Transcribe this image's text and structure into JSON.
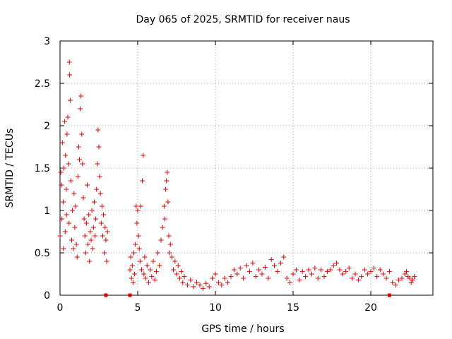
{
  "chart_data": {
    "type": "scatter",
    "title": "Day 065 of 2025, SRMTID for receiver naus",
    "xlabel": "GPS time / hours",
    "ylabel": "SRMTID / TECUs",
    "xlim": [
      0,
      24
    ],
    "ylim": [
      0,
      3
    ],
    "grid": true,
    "x_ticks": [
      0,
      5,
      10,
      15,
      20
    ],
    "x_tick_labels": [
      "0",
      "5",
      "10",
      "15",
      "20"
    ],
    "y_ticks": [
      0,
      0.5,
      1,
      1.5,
      2,
      2.5,
      3
    ],
    "y_tick_labels": [
      "0",
      "0.5",
      "1",
      "1.5",
      "2",
      "2.5",
      "3"
    ],
    "marker": "+",
    "color": "#e00000",
    "series": [
      {
        "name": "SRMTID",
        "points": [
          [
            0.0,
            0.7
          ],
          [
            0.05,
            1.45
          ],
          [
            0.1,
            1.3
          ],
          [
            0.12,
            0.9
          ],
          [
            0.15,
            1.8
          ],
          [
            0.2,
            1.1
          ],
          [
            0.22,
            0.55
          ],
          [
            0.25,
            1.5
          ],
          [
            0.3,
            2.05
          ],
          [
            0.33,
            0.75
          ],
          [
            0.35,
            1.65
          ],
          [
            0.4,
            1.25
          ],
          [
            0.42,
            0.95
          ],
          [
            0.45,
            1.9
          ],
          [
            0.5,
            2.1
          ],
          [
            0.55,
            1.55
          ],
          [
            0.58,
            0.85
          ],
          [
            0.6,
            2.75
          ],
          [
            0.62,
            2.6
          ],
          [
            0.65,
            2.3
          ],
          [
            0.7,
            1.35
          ],
          [
            0.75,
            0.65
          ],
          [
            0.8,
            1.0
          ],
          [
            0.85,
            0.55
          ],
          [
            0.9,
            1.2
          ],
          [
            0.95,
            0.8
          ],
          [
            1.0,
            1.05
          ],
          [
            1.05,
            0.6
          ],
          [
            1.1,
            0.45
          ],
          [
            1.15,
            1.4
          ],
          [
            1.2,
            1.75
          ],
          [
            1.25,
            1.6
          ],
          [
            1.3,
            2.2
          ],
          [
            1.35,
            2.35
          ],
          [
            1.4,
            1.9
          ],
          [
            1.45,
            1.55
          ],
          [
            1.5,
            1.15
          ],
          [
            1.55,
            0.9
          ],
          [
            1.6,
            0.7
          ],
          [
            1.65,
            0.5
          ],
          [
            1.7,
            0.85
          ],
          [
            1.75,
            1.3
          ],
          [
            1.8,
            0.6
          ],
          [
            1.85,
            0.95
          ],
          [
            1.9,
            0.4
          ],
          [
            1.95,
            0.75
          ],
          [
            2.0,
            0.65
          ],
          [
            2.05,
            1.0
          ],
          [
            2.1,
            0.55
          ],
          [
            2.15,
            0.8
          ],
          [
            2.2,
            1.1
          ],
          [
            2.25,
            0.7
          ],
          [
            2.3,
            0.9
          ],
          [
            2.35,
            1.25
          ],
          [
            2.4,
            1.55
          ],
          [
            2.45,
            1.95
          ],
          [
            2.5,
            1.75
          ],
          [
            2.55,
            1.4
          ],
          [
            2.6,
            1.2
          ],
          [
            2.65,
            0.85
          ],
          [
            2.7,
            1.05
          ],
          [
            2.75,
            0.7
          ],
          [
            2.8,
            0.95
          ],
          [
            2.85,
            0.5
          ],
          [
            2.9,
            0.8
          ],
          [
            2.95,
            0.65
          ],
          [
            3.0,
            0.4
          ],
          [
            3.05,
            0.75
          ],
          [
            4.5,
            0.3
          ],
          [
            4.55,
            0.45
          ],
          [
            4.6,
            0.2
          ],
          [
            4.65,
            0.35
          ],
          [
            4.7,
            0.15
          ],
          [
            4.75,
            0.5
          ],
          [
            4.8,
            0.25
          ],
          [
            4.85,
            0.6
          ],
          [
            4.9,
            1.05
          ],
          [
            4.95,
            0.85
          ],
          [
            5.0,
            1.0
          ],
          [
            5.05,
            0.7
          ],
          [
            5.1,
            0.55
          ],
          [
            5.15,
            0.4
          ],
          [
            5.2,
            1.05
          ],
          [
            5.25,
            0.3
          ],
          [
            5.3,
            1.35
          ],
          [
            5.35,
            1.65
          ],
          [
            5.4,
            0.25
          ],
          [
            5.45,
            0.45
          ],
          [
            5.5,
            0.2
          ],
          [
            5.6,
            0.35
          ],
          [
            5.7,
            0.15
          ],
          [
            5.8,
            0.3
          ],
          [
            5.9,
            0.22
          ],
          [
            6.0,
            0.4
          ],
          [
            6.1,
            0.18
          ],
          [
            6.2,
            0.28
          ],
          [
            6.3,
            0.5
          ],
          [
            6.4,
            0.35
          ],
          [
            6.5,
            0.65
          ],
          [
            6.6,
            0.8
          ],
          [
            6.7,
            1.05
          ],
          [
            6.75,
            0.9
          ],
          [
            6.8,
            1.25
          ],
          [
            6.85,
            1.35
          ],
          [
            6.9,
            1.45
          ],
          [
            6.95,
            1.1
          ],
          [
            7.0,
            0.7
          ],
          [
            7.05,
            0.5
          ],
          [
            7.1,
            0.6
          ],
          [
            7.2,
            0.45
          ],
          [
            7.3,
            0.3
          ],
          [
            7.4,
            0.4
          ],
          [
            7.5,
            0.25
          ],
          [
            7.6,
            0.35
          ],
          [
            7.7,
            0.2
          ],
          [
            7.8,
            0.28
          ],
          [
            7.9,
            0.15
          ],
          [
            8.0,
            0.22
          ],
          [
            8.2,
            0.12
          ],
          [
            8.4,
            0.18
          ],
          [
            8.6,
            0.1
          ],
          [
            8.8,
            0.15
          ],
          [
            9.0,
            0.12
          ],
          [
            9.2,
            0.08
          ],
          [
            9.4,
            0.14
          ],
          [
            9.6,
            0.1
          ],
          [
            9.8,
            0.2
          ],
          [
            10.0,
            0.25
          ],
          [
            10.2,
            0.15
          ],
          [
            10.4,
            0.12
          ],
          [
            10.6,
            0.2
          ],
          [
            10.8,
            0.15
          ],
          [
            11.0,
            0.22
          ],
          [
            11.2,
            0.3
          ],
          [
            11.4,
            0.25
          ],
          [
            11.6,
            0.32
          ],
          [
            11.8,
            0.2
          ],
          [
            12.0,
            0.35
          ],
          [
            12.2,
            0.28
          ],
          [
            12.4,
            0.38
          ],
          [
            12.6,
            0.22
          ],
          [
            12.8,
            0.3
          ],
          [
            13.0,
            0.25
          ],
          [
            13.2,
            0.33
          ],
          [
            13.4,
            0.2
          ],
          [
            13.6,
            0.42
          ],
          [
            13.8,
            0.35
          ],
          [
            14.0,
            0.28
          ],
          [
            14.2,
            0.38
          ],
          [
            14.4,
            0.45
          ],
          [
            14.6,
            0.2
          ],
          [
            14.8,
            0.15
          ],
          [
            15.0,
            0.25
          ],
          [
            15.2,
            0.3
          ],
          [
            15.4,
            0.18
          ],
          [
            15.6,
            0.28
          ],
          [
            15.8,
            0.22
          ],
          [
            16.0,
            0.3
          ],
          [
            16.2,
            0.25
          ],
          [
            16.4,
            0.32
          ],
          [
            16.6,
            0.2
          ],
          [
            16.8,
            0.3
          ],
          [
            17.0,
            0.22
          ],
          [
            17.2,
            0.28
          ],
          [
            17.4,
            0.3
          ],
          [
            17.6,
            0.35
          ],
          [
            17.8,
            0.38
          ],
          [
            18.0,
            0.3
          ],
          [
            18.2,
            0.25
          ],
          [
            18.4,
            0.28
          ],
          [
            18.6,
            0.32
          ],
          [
            18.8,
            0.2
          ],
          [
            19.0,
            0.25
          ],
          [
            19.2,
            0.18
          ],
          [
            19.4,
            0.22
          ],
          [
            19.6,
            0.3
          ],
          [
            19.8,
            0.25
          ],
          [
            20.0,
            0.28
          ],
          [
            20.2,
            0.32
          ],
          [
            20.4,
            0.22
          ],
          [
            20.6,
            0.3
          ],
          [
            20.8,
            0.25
          ],
          [
            21.0,
            0.2
          ],
          [
            21.2,
            0.28
          ],
          [
            21.4,
            0.15
          ],
          [
            21.6,
            0.12
          ],
          [
            21.8,
            0.18
          ],
          [
            22.0,
            0.2
          ],
          [
            22.2,
            0.25
          ],
          [
            22.3,
            0.28
          ],
          [
            22.4,
            0.22
          ],
          [
            22.5,
            0.2
          ],
          [
            22.6,
            0.15
          ],
          [
            22.7,
            0.18
          ],
          [
            22.8,
            0.22
          ]
        ]
      }
    ],
    "zero_markers": [
      2.95,
      4.5,
      21.2
    ]
  }
}
